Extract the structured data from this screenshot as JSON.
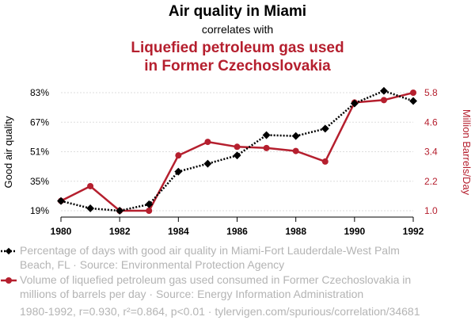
{
  "chart_data": {
    "type": "line",
    "title": "Air quality in Miami",
    "subtitle": "correlates with",
    "title2_line1": "Liquefied petroleum gas used",
    "title2_line2": "in Former Czechoslovakia",
    "ylabel_left": "Good air quality",
    "ylabel_right": "Million Barrels/Day",
    "x": [
      1980,
      1981,
      1982,
      1983,
      1984,
      1985,
      1986,
      1987,
      1988,
      1989,
      1990,
      1991,
      1992
    ],
    "x_ticks": [
      "1980",
      "1982",
      "1984",
      "1986",
      "1988",
      "1990",
      "1992"
    ],
    "left_ticks": [
      "19%",
      "35%",
      "51%",
      "67%",
      "83%"
    ],
    "right_ticks": [
      "1.0",
      "2.2",
      "3.4",
      "4.6",
      "5.8"
    ],
    "xlim": [
      1980,
      1992
    ],
    "ylim_left": [
      19,
      83
    ],
    "ylim_right": [
      1.0,
      5.8
    ],
    "series": [
      {
        "name": "Air quality in Miami",
        "axis": "left",
        "color": "#000000",
        "style": "dotted",
        "marker": "diamond",
        "values": [
          24.3,
          20.3,
          19.0,
          22.5,
          40.2,
          44.5,
          49.0,
          60.0,
          59.5,
          63.5,
          77.2,
          84.0,
          78.5
        ]
      },
      {
        "name": "Liquefied petroleum gas used in Former Czechoslovakia",
        "axis": "right",
        "color": "#b51f2e",
        "style": "solid",
        "marker": "circle",
        "values": [
          1.4,
          2.0,
          1.0,
          1.0,
          3.25,
          3.8,
          3.6,
          3.55,
          3.43,
          3.0,
          5.4,
          5.5,
          5.8
        ]
      }
    ],
    "legend": [
      {
        "line1": "Percentage of days with good air quality in Miami-Fort Lauderdale-West Palm",
        "line2": "Beach, FL · Source: Environmental Protection Agency"
      },
      {
        "line1": "Volume of liquefied petroleum gas used consumed in Former Czechoslovakia in",
        "line2": "millions of barrels per day · Source: Energy Information Administration"
      }
    ],
    "footnote": "1980-1992, r=0.930, r²=0.864, p<0.01 · tylervigen.com/spurious/correlation/34681",
    "grid": true
  }
}
